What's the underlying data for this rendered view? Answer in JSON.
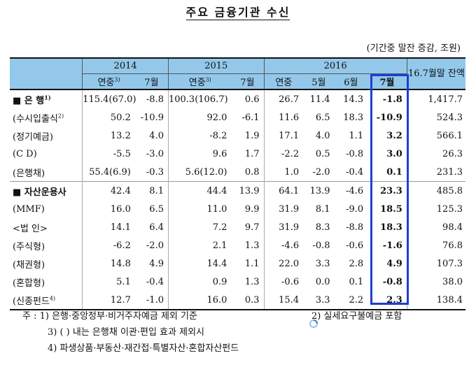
{
  "title": "주요 금융기관 수신",
  "unit": "(기간중 말잔 증감, 조원)",
  "header": {
    "years": [
      "2014",
      "2015",
      "2016"
    ],
    "sub_2014": [
      "연중",
      "7월"
    ],
    "sub_2015": [
      "연중",
      "7월"
    ],
    "sub_2016": [
      "연중",
      "5월",
      "6월",
      "7월"
    ],
    "balance": "16.7월말 잔액",
    "sup_annual": "3)"
  },
  "rows": [
    {
      "label": "■ 은  행",
      "sup": "1)",
      "c": [
        "115.4(67.0)",
        "-8.8",
        "100.3(106.7)",
        "0.6",
        "26.7",
        "11.4",
        "14.3",
        "-1.8",
        "1,417.7"
      ]
    },
    {
      "label": "(수시입출식",
      "sup": "2)",
      "c": [
        "50.2",
        "-10.9",
        "92.0",
        "-6.1",
        "11.6",
        "6.5",
        "18.3",
        "-10.9",
        "524.3"
      ]
    },
    {
      "label": "(정기예금)",
      "sup": "",
      "c": [
        "13.2",
        "4.0",
        "-8.2",
        "1.9",
        "17.1",
        "4.0",
        "1.1",
        "3.2",
        "566.1"
      ]
    },
    {
      "label": "(C  D)",
      "sup": "",
      "c": [
        "-5.5",
        "-3.0",
        "9.6",
        "1.7",
        "-2.2",
        "0.5",
        "-0.8",
        "3.0",
        "26.3"
      ]
    },
    {
      "label": "(은행채)",
      "sup": "",
      "c": [
        "55.4(6.9)",
        "-0.3",
        "5.6(12.0)",
        "0.8",
        "1.0",
        "-2.0",
        "-0.4",
        "0.1",
        "231.3"
      ]
    },
    {
      "label": "■ 자산운용사",
      "sup": "",
      "c": [
        "42.4",
        "8.1",
        "44.4",
        "13.9",
        "64.1",
        "13.9",
        "-4.6",
        "23.3",
        "485.8"
      ]
    },
    {
      "label": "(MMF)",
      "sup": "",
      "c": [
        "16.0",
        "6.5",
        "11.0",
        "9.9",
        "31.9",
        "8.1",
        "-9.0",
        "18.5",
        "125.3"
      ]
    },
    {
      "label": "  <법  인>",
      "sup": "",
      "c": [
        "14.1",
        "6.4",
        "7.2",
        "9.7",
        "31.9",
        "8.3",
        "-8.8",
        "18.3",
        "98.4"
      ]
    },
    {
      "label": "(주식형)",
      "sup": "",
      "c": [
        "-6.2",
        "-2.0",
        "2.1",
        "1.3",
        "-4.6",
        "-0.8",
        "-0.6",
        "-1.6",
        "76.8"
      ]
    },
    {
      "label": "(채권형)",
      "sup": "",
      "c": [
        "14.8",
        "4.9",
        "14.4",
        "1.1",
        "22.0",
        "3.3",
        "2.8",
        "4.9",
        "107.3"
      ]
    },
    {
      "label": "(혼합형)",
      "sup": "",
      "c": [
        "5.1",
        "-0.4",
        "0.9",
        "1.3",
        "-0.6",
        "0.0",
        "0.1",
        "-0.8",
        "38.0"
      ]
    },
    {
      "label": "(신종펀드",
      "sup": "4)",
      "c": [
        "12.7",
        "-1.0",
        "16.0",
        "0.3",
        "15.4",
        "3.3",
        "2.2",
        "2.3",
        "138.4"
      ]
    }
  ],
  "notes": {
    "n1": "주 : 1) 은행·중앙정부·비거주자예금 제외 기준",
    "n2": "2) 실세요구불예금 포함",
    "n3": "3) (  ) 내는 은행채 이관·편입 효과 제외시",
    "n4": "4) 파생상품·부동산·재간접·특별자산·혼합자산펀드"
  },
  "accent_color": "#1e3fd6",
  "header_bg": "#93c8ea"
}
